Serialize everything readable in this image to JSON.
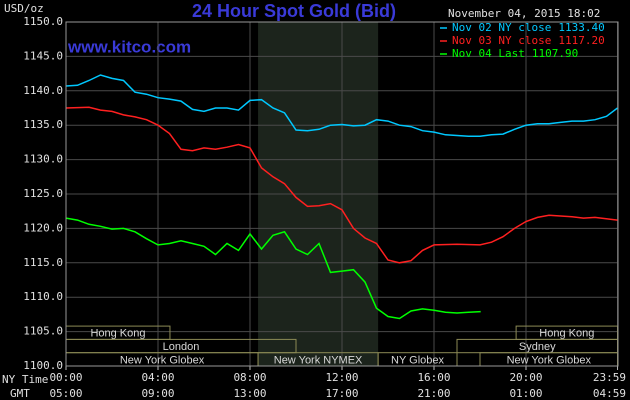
{
  "chart_data": {
    "type": "line",
    "title": "24 Hour Spot Gold (Bid)",
    "site": "www.kitco.com",
    "ylabel": "USD/oz",
    "date": "November 04, 2015 18:02",
    "xlabel": "NY Time",
    "x2label": "GMT",
    "xlim": [
      0,
      24
    ],
    "ylim": [
      1100,
      1150
    ],
    "grid": true,
    "legend": "top-right",
    "yticks": [
      {
        "value": 1100,
        "label": "1100.0"
      },
      {
        "value": 1105,
        "label": "1105.0"
      },
      {
        "value": 1110,
        "label": "1110.0"
      },
      {
        "value": 1115,
        "label": "1115.0"
      },
      {
        "value": 1120,
        "label": "1120.0"
      },
      {
        "value": 1125,
        "label": "1125.0"
      },
      {
        "value": 1130,
        "label": "1130.0"
      },
      {
        "value": 1135,
        "label": "1135.0"
      },
      {
        "value": 1140,
        "label": "1140.0"
      },
      {
        "value": 1145,
        "label": "1145.0"
      },
      {
        "value": 1150,
        "label": "1150.0"
      }
    ],
    "xticks": [
      {
        "value": 0,
        "label": "00:00"
      },
      {
        "value": 4,
        "label": "04:00"
      },
      {
        "value": 8,
        "label": "08:00"
      },
      {
        "value": 12,
        "label": "12:00"
      },
      {
        "value": 16,
        "label": "16:00"
      },
      {
        "value": 20,
        "label": "20:00"
      },
      {
        "value": 23.98,
        "label": "23:59"
      }
    ],
    "x2ticks": [
      {
        "value": 0,
        "label": "05:00"
      },
      {
        "value": 4,
        "label": "09:00"
      },
      {
        "value": 8,
        "label": "13:00"
      },
      {
        "value": 12,
        "label": "17:00"
      },
      {
        "value": 16,
        "label": "21:00"
      },
      {
        "value": 20,
        "label": "01:00"
      },
      {
        "value": 23.98,
        "label": "04:59"
      }
    ],
    "session_rows": [
      [
        {
          "name": "Hong Kong",
          "start": 0,
          "end": 4.52
        },
        {
          "name": "Hong Kong",
          "start": 19.57,
          "end": 23.98
        }
      ],
      [
        {
          "name": "London",
          "start": 0,
          "end": 10
        },
        {
          "name": "Sydney",
          "start": 17,
          "end": 23.98
        }
      ],
      [
        {
          "name": "New York Globex",
          "start": 0,
          "end": 8.35
        },
        {
          "name": "New York NYMEX",
          "start": 8.35,
          "end": 13.57,
          "shaded": true
        },
        {
          "name": "NY Globex",
          "start": 13.57,
          "end": 17
        },
        {
          "name": "New York Globex",
          "start": 18,
          "end": 23.98
        }
      ]
    ],
    "series": [
      {
        "name": "Nov 02 NY close",
        "color": "#00c8ff",
        "close": {
          "value": 1133.4,
          "label": "1133.40"
        },
        "x": [
          0,
          0.5,
          1,
          1.5,
          2,
          2.5,
          3,
          3.5,
          4,
          4.5,
          5,
          5.5,
          6,
          6.5,
          7,
          7.5,
          8,
          8.5,
          9,
          9.5,
          10,
          10.5,
          11,
          11.5,
          12,
          12.5,
          13,
          13.5,
          14,
          14.5,
          15,
          15.5,
          16,
          16.5,
          17,
          17.5,
          18,
          18.5,
          19,
          19.5,
          20,
          20.5,
          21,
          21.5,
          22,
          22.5,
          23,
          23.5,
          23.98
        ],
        "values": [
          1140.7,
          1140.8,
          1141.5,
          1142.3,
          1141.8,
          1141.5,
          1139.8,
          1139.5,
          1139,
          1138.8,
          1138.5,
          1137.3,
          1137,
          1137.5,
          1137.5,
          1137.2,
          1138.6,
          1138.7,
          1137.5,
          1136.8,
          1134.3,
          1134.2,
          1134.4,
          1135,
          1135.1,
          1134.9,
          1135,
          1135.8,
          1135.6,
          1135,
          1134.8,
          1134.2,
          1134,
          1133.6,
          1133.5,
          1133.4,
          1133.4,
          1133.6,
          1133.7,
          1134.4,
          1135,
          1135.2,
          1135.2,
          1135.4,
          1135.6,
          1135.6,
          1135.8,
          1136.3,
          1137.5
        ]
      },
      {
        "name": "Nov 03 NY close",
        "color": "#ff2020",
        "close": {
          "value": 1117.2,
          "label": "1117.20"
        },
        "x": [
          0,
          1,
          1.5,
          2,
          2.5,
          3,
          3.5,
          4,
          4.5,
          5,
          5.5,
          6,
          6.5,
          7,
          7.5,
          8,
          8.5,
          9,
          9.5,
          10,
          10.5,
          11,
          11.5,
          12,
          12.5,
          13,
          13.5,
          14,
          14.5,
          15,
          15.5,
          16,
          17,
          18,
          18.5,
          19,
          19.5,
          20,
          20.5,
          21,
          22,
          22.5,
          23,
          23.98
        ],
        "values": [
          1137.5,
          1137.6,
          1137.2,
          1137,
          1136.5,
          1136.2,
          1135.8,
          1135,
          1133.8,
          1131.5,
          1131.3,
          1131.7,
          1131.5,
          1131.8,
          1132.2,
          1131.7,
          1128.8,
          1127.5,
          1126.5,
          1124.5,
          1123.2,
          1123.3,
          1123.6,
          1122.7,
          1120,
          1118.6,
          1117.8,
          1115.4,
          1115,
          1115.3,
          1116.8,
          1117.6,
          1117.7,
          1117.6,
          1118,
          1118.8,
          1120,
          1121,
          1121.6,
          1121.9,
          1121.7,
          1121.5,
          1121.6,
          1121.2
        ]
      },
      {
        "name": "Nov 04 Last",
        "color": "#00ff00",
        "close": {
          "value": 1107.9,
          "label": "1107.90"
        },
        "x": [
          0,
          0.5,
          1,
          1.5,
          2,
          2.5,
          3,
          3.5,
          4,
          4.5,
          5,
          5.5,
          6,
          6.5,
          7,
          7.5,
          8,
          8.5,
          9,
          9.5,
          10,
          10.5,
          11,
          11.5,
          12,
          12.5,
          13,
          13.5,
          14,
          14.5,
          15,
          15.5,
          16,
          16.5,
          17,
          17.5,
          18.03
        ],
        "values": [
          1121.5,
          1121.2,
          1120.6,
          1120.3,
          1119.9,
          1120,
          1119.5,
          1118.5,
          1117.6,
          1117.8,
          1118.2,
          1117.8,
          1117.4,
          1116.2,
          1117.8,
          1116.8,
          1119.2,
          1117,
          1119,
          1119.5,
          1117,
          1116.2,
          1117.8,
          1113.6,
          1113.8,
          1114,
          1112.2,
          1108.4,
          1107.2,
          1106.9,
          1108,
          1108.3,
          1108.1,
          1107.8,
          1107.7,
          1107.8,
          1107.9
        ]
      }
    ]
  }
}
